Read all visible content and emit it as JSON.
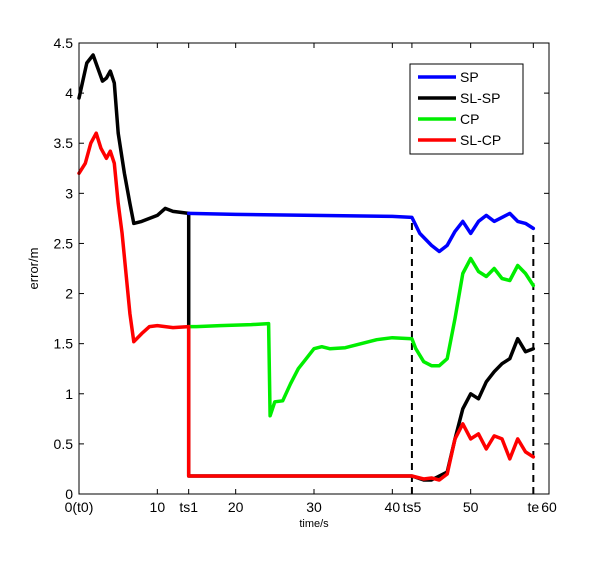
{
  "chart_data": {
    "type": "line",
    "title": "",
    "xlabel": "time/s",
    "ylabel": "error/m",
    "xlim": [
      0,
      60
    ],
    "ylim": [
      0,
      4.5
    ],
    "grid": false,
    "legend_position": "top-right",
    "x_ticks": [
      {
        "value": 0,
        "label": "0(t0)"
      },
      {
        "value": 10,
        "label": "10"
      },
      {
        "value": 14,
        "label": "ts1"
      },
      {
        "value": 20,
        "label": "20"
      },
      {
        "value": 30,
        "label": "30"
      },
      {
        "value": 40,
        "label": "40"
      },
      {
        "value": 42.5,
        "label": "ts5"
      },
      {
        "value": 50,
        "label": "50"
      },
      {
        "value": 58,
        "label": "te"
      },
      {
        "value": 60,
        "label": "60"
      }
    ],
    "y_ticks": [
      {
        "value": 0,
        "label": "0"
      },
      {
        "value": 0.5,
        "label": "0.5"
      },
      {
        "value": 1,
        "label": "1"
      },
      {
        "value": 1.5,
        "label": "1.5"
      },
      {
        "value": 2,
        "label": "2"
      },
      {
        "value": 2.5,
        "label": "2.5"
      },
      {
        "value": 3,
        "label": "3"
      },
      {
        "value": 3.5,
        "label": "3.5"
      },
      {
        "value": 4,
        "label": "4"
      },
      {
        "value": 4.5,
        "label": "4.5"
      }
    ],
    "vlines": [
      {
        "x": 42.5,
        "y": [
          0,
          2.75
        ],
        "style": "dashed"
      },
      {
        "x": 58,
        "y": [
          0,
          2.65
        ],
        "style": "dashed"
      }
    ],
    "series": [
      {
        "name": "SP",
        "color": "#0000ff",
        "points": [
          [
            14,
            2.8
          ],
          [
            20,
            2.79
          ],
          [
            30,
            2.78
          ],
          [
            40,
            2.77
          ],
          [
            42.5,
            2.76
          ],
          [
            43.5,
            2.6
          ],
          [
            45,
            2.48
          ],
          [
            46,
            2.42
          ],
          [
            47,
            2.48
          ],
          [
            48,
            2.62
          ],
          [
            49,
            2.72
          ],
          [
            50,
            2.6
          ],
          [
            51,
            2.72
          ],
          [
            52,
            2.78
          ],
          [
            53,
            2.72
          ],
          [
            54,
            2.76
          ],
          [
            55,
            2.8
          ],
          [
            56,
            2.72
          ],
          [
            57,
            2.7
          ],
          [
            58,
            2.65
          ]
        ]
      },
      {
        "name": "SL-SP",
        "color": "#000000",
        "points": [
          [
            0,
            3.95
          ],
          [
            1,
            4.3
          ],
          [
            1.8,
            4.38
          ],
          [
            2.4,
            4.25
          ],
          [
            3,
            4.12
          ],
          [
            3.5,
            4.15
          ],
          [
            4,
            4.22
          ],
          [
            4.5,
            4.1
          ],
          [
            5,
            3.6
          ],
          [
            5.8,
            3.2
          ],
          [
            6.5,
            2.9
          ],
          [
            7,
            2.7
          ],
          [
            8,
            2.72
          ],
          [
            10,
            2.78
          ],
          [
            11,
            2.85
          ],
          [
            12,
            2.82
          ],
          [
            14,
            2.8
          ],
          [
            14,
            0.18
          ],
          [
            16,
            0.18
          ],
          [
            20,
            0.18
          ],
          [
            30,
            0.18
          ],
          [
            40,
            0.18
          ],
          [
            42.5,
            0.18
          ],
          [
            44,
            0.14
          ],
          [
            45,
            0.14
          ],
          [
            46,
            0.18
          ],
          [
            47,
            0.22
          ],
          [
            48,
            0.55
          ],
          [
            49,
            0.85
          ],
          [
            50,
            1.0
          ],
          [
            51,
            0.95
          ],
          [
            52,
            1.12
          ],
          [
            53,
            1.22
          ],
          [
            54,
            1.3
          ],
          [
            55,
            1.35
          ],
          [
            56,
            1.55
          ],
          [
            57,
            1.42
          ],
          [
            58,
            1.45
          ]
        ]
      },
      {
        "name": "CP",
        "color": "#00ee00",
        "points": [
          [
            14,
            1.67
          ],
          [
            15,
            1.67
          ],
          [
            18,
            1.68
          ],
          [
            22,
            1.69
          ],
          [
            24.2,
            1.7
          ],
          [
            24.4,
            0.78
          ],
          [
            25,
            0.92
          ],
          [
            26,
            0.93
          ],
          [
            27,
            1.1
          ],
          [
            28,
            1.25
          ],
          [
            29,
            1.35
          ],
          [
            30,
            1.45
          ],
          [
            31,
            1.47
          ],
          [
            32,
            1.45
          ],
          [
            34,
            1.46
          ],
          [
            36,
            1.5
          ],
          [
            38,
            1.54
          ],
          [
            40,
            1.56
          ],
          [
            42.5,
            1.55
          ],
          [
            43,
            1.45
          ],
          [
            44,
            1.32
          ],
          [
            45,
            1.28
          ],
          [
            46,
            1.28
          ],
          [
            47,
            1.35
          ],
          [
            48,
            1.75
          ],
          [
            49,
            2.2
          ],
          [
            50,
            2.35
          ],
          [
            51,
            2.22
          ],
          [
            52,
            2.17
          ],
          [
            53,
            2.25
          ],
          [
            54,
            2.15
          ],
          [
            55,
            2.13
          ],
          [
            56,
            2.28
          ],
          [
            57,
            2.2
          ],
          [
            58,
            2.08
          ]
        ]
      },
      {
        "name": "SL-CP",
        "color": "#ff0000",
        "points": [
          [
            0,
            3.2
          ],
          [
            0.8,
            3.3
          ],
          [
            1.5,
            3.5
          ],
          [
            2.2,
            3.6
          ],
          [
            2.8,
            3.45
          ],
          [
            3.5,
            3.35
          ],
          [
            4,
            3.42
          ],
          [
            4.5,
            3.3
          ],
          [
            5,
            2.9
          ],
          [
            5.5,
            2.6
          ],
          [
            6,
            2.2
          ],
          [
            6.5,
            1.8
          ],
          [
            7,
            1.52
          ],
          [
            8,
            1.6
          ],
          [
            9,
            1.67
          ],
          [
            10,
            1.68
          ],
          [
            12,
            1.66
          ],
          [
            14,
            1.67
          ],
          [
            14,
            0.18
          ],
          [
            16,
            0.18
          ],
          [
            20,
            0.18
          ],
          [
            30,
            0.18
          ],
          [
            40,
            0.18
          ],
          [
            42.5,
            0.18
          ],
          [
            44,
            0.15
          ],
          [
            45,
            0.16
          ],
          [
            46,
            0.14
          ],
          [
            47,
            0.2
          ],
          [
            48,
            0.55
          ],
          [
            49,
            0.7
          ],
          [
            50,
            0.55
          ],
          [
            51,
            0.6
          ],
          [
            52,
            0.45
          ],
          [
            53,
            0.58
          ],
          [
            54,
            0.55
          ],
          [
            55,
            0.35
          ],
          [
            56,
            0.55
          ],
          [
            57,
            0.42
          ],
          [
            58,
            0.37
          ]
        ]
      }
    ]
  }
}
